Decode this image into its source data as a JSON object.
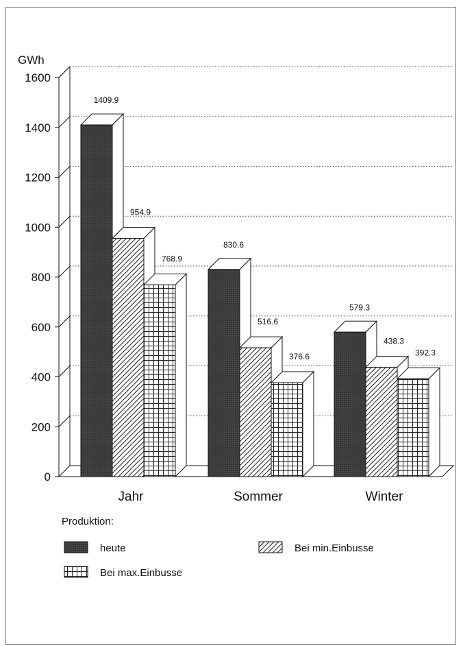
{
  "chart_data": {
    "type": "bar",
    "title": "",
    "xlabel": "",
    "ylabel": "GWh",
    "ylim": [
      0,
      1600
    ],
    "yticks": [
      0,
      200,
      400,
      600,
      800,
      1000,
      1200,
      1400,
      1600
    ],
    "categories": [
      "Jahr",
      "Sommer",
      "Winter"
    ],
    "legend_title": "Produktion:",
    "series": [
      {
        "name": "heute",
        "values": [
          1409.9,
          830.6,
          579.3
        ],
        "labels": [
          "1409.9",
          "830.6",
          "579.3"
        ],
        "pattern": "solid-dark"
      },
      {
        "name": "Bei min.Einbusse",
        "values": [
          954.9,
          516.6,
          438.3
        ],
        "labels": [
          "954.9",
          "516.6",
          "438.3"
        ],
        "pattern": "diagonal-hatch"
      },
      {
        "name": "Bei max.Einbusse",
        "values": [
          768.9,
          376.6,
          392.3
        ],
        "labels": [
          "768.9",
          "376.6",
          "392.3"
        ],
        "pattern": "grid"
      }
    ],
    "grid": true,
    "style": "3d",
    "colors": {
      "dark": "#3a3a3a",
      "line": "#111111"
    }
  }
}
